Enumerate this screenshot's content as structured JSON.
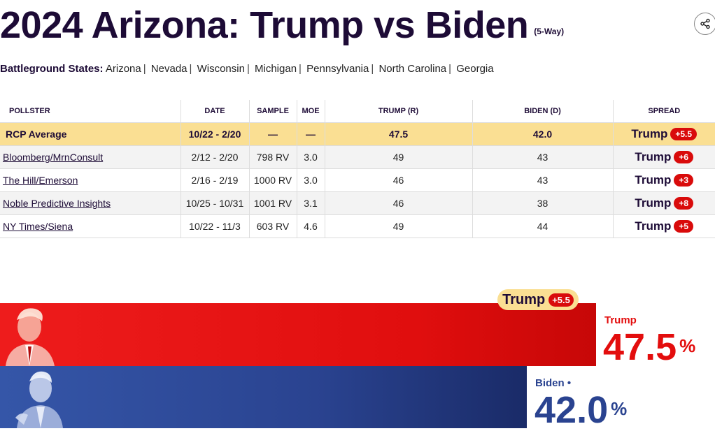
{
  "header": {
    "title": "2024 Arizona: Trump vs Biden",
    "subtitle": "(5-Way)",
    "share_icon": "share-icon"
  },
  "battleground": {
    "label": "Battleground States:",
    "states": [
      "Arizona",
      "Nevada",
      "Wisconsin",
      "Michigan",
      "Pennsylvania",
      "North Carolina",
      "Georgia"
    ]
  },
  "table": {
    "headers": [
      "POLLSTER",
      "DATE",
      "SAMPLE",
      "MOE",
      "TRUMP (R)",
      "BIDEN (D)",
      "SPREAD"
    ],
    "average": {
      "pollster": "RCP Average",
      "date": "10/22 - 2/20",
      "sample": "—",
      "moe": "—",
      "trump": "47.5",
      "biden": "42.0",
      "spread_name": "Trump",
      "spread_value": "+5.5"
    },
    "rows": [
      {
        "pollster": "Bloomberg/MrnConsult",
        "date": "2/12 - 2/20",
        "sample": "798 RV",
        "moe": "3.0",
        "trump": "49",
        "biden": "43",
        "spread_name": "Trump",
        "spread_value": "+6"
      },
      {
        "pollster": "The Hill/Emerson",
        "date": "2/16 - 2/19",
        "sample": "1000 RV",
        "moe": "3.0",
        "trump": "46",
        "biden": "43",
        "spread_name": "Trump",
        "spread_value": "+3"
      },
      {
        "pollster": "Noble Predictive Insights",
        "date": "10/25 - 10/31",
        "sample": "1001 RV",
        "moe": "3.1",
        "trump": "46",
        "biden": "38",
        "spread_name": "Trump",
        "spread_value": "+8"
      },
      {
        "pollster": "NY Times/Siena",
        "date": "10/22 - 11/3",
        "sample": "603 RV",
        "moe": "4.6",
        "trump": "49",
        "biden": "44",
        "spread_name": "Trump",
        "spread_value": "+5"
      }
    ]
  },
  "results": {
    "leader": {
      "name": "Trump",
      "spread": "+5.5"
    },
    "trump": {
      "name": "Trump",
      "value": "47.5",
      "pct_sign": "%",
      "color": "#e30d0d"
    },
    "biden": {
      "name": "Biden •",
      "value": "42.0",
      "pct_sign": "%",
      "color": "#2a4390"
    }
  },
  "colors": {
    "navy": "#1d0b36",
    "highlight": "#fadf93",
    "badge_red": "#d90b0b"
  }
}
